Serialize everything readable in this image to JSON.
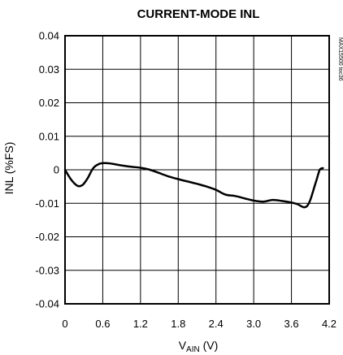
{
  "chart_data": {
    "type": "line",
    "title": "CURRENT-MODE INL",
    "xlabel": {
      "main": "V",
      "sub": "AIN",
      "unit": " (V)"
    },
    "ylabel": "INL (%FS)",
    "watermark": "MAX15500 toc36",
    "xlim": [
      0,
      4.2
    ],
    "ylim": [
      -0.04,
      0.04
    ],
    "x_ticks": [
      "0",
      "0.6",
      "1.2",
      "1.8",
      "2.4",
      "3.0",
      "3.6",
      "4.2"
    ],
    "y_ticks": [
      "0.04",
      "0.03",
      "0.02",
      "0.01",
      "0",
      "-0.01",
      "-0.02",
      "-0.03",
      "-0.04"
    ],
    "grid": true,
    "series": [
      {
        "x": [
          0,
          0.1,
          0.2,
          0.28,
          0.36,
          0.45,
          0.55,
          0.65,
          0.75,
          0.9,
          1.05,
          1.2,
          1.35,
          1.5,
          1.65,
          1.8,
          1.95,
          2.1,
          2.25,
          2.4,
          2.55,
          2.7,
          2.85,
          3.0,
          3.15,
          3.3,
          3.45,
          3.6,
          3.7,
          3.75,
          3.8,
          3.85,
          3.9,
          3.95,
          4.0,
          4.05,
          4.1
        ],
        "y": [
          0,
          -0.003,
          -0.0048,
          -0.0045,
          -0.0025,
          0.0005,
          0.0018,
          0.002,
          0.0018,
          0.0013,
          0.0009,
          0.0006,
          0,
          -0.001,
          -0.002,
          -0.0028,
          -0.0035,
          -0.0042,
          -0.005,
          -0.006,
          -0.0074,
          -0.0078,
          -0.0085,
          -0.0092,
          -0.0095,
          -0.009,
          -0.0093,
          -0.0098,
          -0.0103,
          -0.0108,
          -0.0112,
          -0.0108,
          -0.009,
          -0.006,
          -0.003,
          0,
          0.0005
        ]
      }
    ]
  }
}
